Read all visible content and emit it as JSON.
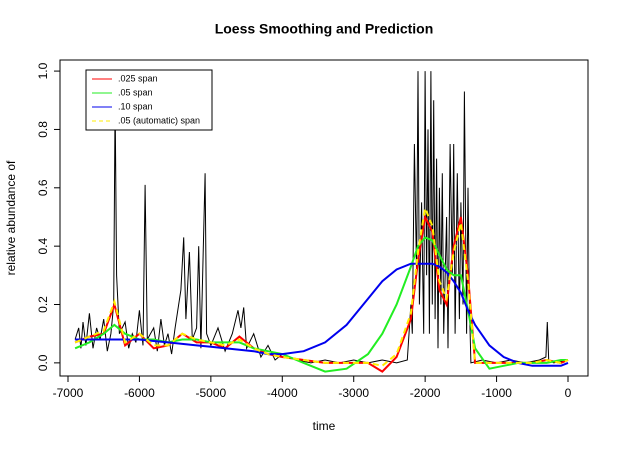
{
  "chart_data": {
    "type": "line",
    "title": "Loess Smoothing and Prediction",
    "x_label": "time",
    "y_label": "relative abundance of",
    "xlim": [
      -7112,
      280
    ],
    "ylim": [
      -0.045,
      1.038
    ],
    "xticks": [
      -7000,
      -6000,
      -5000,
      -4000,
      -3000,
      -2000,
      -1000,
      0
    ],
    "yticks": [
      {
        "value": 0,
        "label": "0.0"
      },
      0.2,
      0.4,
      0.6,
      0.8,
      {
        "value": 1,
        "label": "1.0"
      }
    ],
    "grid": false,
    "legend": "top-left",
    "series": [
      {
        "color": "#000000",
        "width": 1,
        "dashed": false,
        "x": [
          -6900,
          -6850,
          -6820,
          -6790,
          -6750,
          -6700,
          -6650,
          -6600,
          -6550,
          -6500,
          -6450,
          -6400,
          -6360,
          -6340,
          -6320,
          -6280,
          -6200,
          -6150,
          -6100,
          -6050,
          -6000,
          -5950,
          -5920,
          -5890,
          -5800,
          -5750,
          -5700,
          -5650,
          -5600,
          -5550,
          -5500,
          -5420,
          -5380,
          -5350,
          -5300,
          -5260,
          -5200,
          -5170,
          -5140,
          -5080,
          -5060,
          -5000,
          -4900,
          -4800,
          -4700,
          -4620,
          -4580,
          -4540,
          -4500,
          -4400,
          -4300,
          -4200,
          -4100,
          -4000,
          -3800,
          -3600,
          -3400,
          -3200,
          -3000,
          -2800,
          -2600,
          -2400,
          -2250,
          -2200,
          -2180,
          -2150,
          -2120,
          -2100,
          -2080,
          -2050,
          -2020,
          -2000,
          -1980,
          -1960,
          -1940,
          -1920,
          -1900,
          -1880,
          -1860,
          -1840,
          -1820,
          -1800,
          -1780,
          -1760,
          -1740,
          -1700,
          -1680,
          -1650,
          -1620,
          -1600,
          -1580,
          -1550,
          -1520,
          -1500,
          -1470,
          -1450,
          -1420,
          -1400,
          -1380,
          -1360,
          -1200,
          -1000,
          -800,
          -600,
          -400,
          -310,
          -290,
          -270,
          -200,
          0
        ],
        "values": [
          0.08,
          0.12,
          0.05,
          0.14,
          0.06,
          0.17,
          0.05,
          0.12,
          0.08,
          0.15,
          0.04,
          0.1,
          0.2,
          0.9,
          0.3,
          0.1,
          0.14,
          0.05,
          0.1,
          0.07,
          0.18,
          0.06,
          0.61,
          0.08,
          0.12,
          0.04,
          0.15,
          0.06,
          0.1,
          0.03,
          0.12,
          0.25,
          0.43,
          0.15,
          0.38,
          0.08,
          0.12,
          0.4,
          0.05,
          0.65,
          0.1,
          0.06,
          0.12,
          0.04,
          0.1,
          0.18,
          0.12,
          0.19,
          0.05,
          0.1,
          0.02,
          0.06,
          0.01,
          0.03,
          0.01,
          0,
          0.01,
          0,
          0.01,
          0,
          0.01,
          0,
          0.01,
          0.2,
          0.1,
          0.75,
          0.3,
          1,
          0.2,
          0.55,
          0.1,
          1,
          0.3,
          0.8,
          0.1,
          1,
          0.2,
          0.9,
          0.15,
          0.7,
          0.05,
          0.6,
          0.2,
          0.65,
          0.1,
          0.5,
          0.05,
          0.75,
          0.3,
          0.75,
          0.1,
          0.65,
          0.15,
          0.55,
          0.2,
          0.93,
          0.1,
          0.6,
          0.2,
          0,
          0.01,
          0,
          0.01,
          0,
          0.01,
          0.02,
          0.14,
          0.01,
          0,
          0.01
        ]
      },
      {
        "name": ".025 span",
        "color": "#ff0000",
        "width": 2,
        "dashed": false,
        "x": [
          -6900,
          -6700,
          -6500,
          -6350,
          -6200,
          -6000,
          -5800,
          -5600,
          -5400,
          -5200,
          -5000,
          -4800,
          -4600,
          -4400,
          -4200,
          -4000,
          -3700,
          -3400,
          -3100,
          -2800,
          -2600,
          -2400,
          -2200,
          -2100,
          -2000,
          -1900,
          -1800,
          -1700,
          -1600,
          -1500,
          -1400,
          -1300,
          -1100,
          -900,
          -700,
          -500,
          -300,
          -100,
          0
        ],
        "values": [
          0.07,
          0.09,
          0.1,
          0.2,
          0.06,
          0.1,
          0.05,
          0.06,
          0.1,
          0.07,
          0.07,
          0.05,
          0.09,
          0.05,
          0.03,
          0.02,
          0.01,
          0,
          0,
          0,
          -0.03,
          0.02,
          0.15,
          0.35,
          0.5,
          0.45,
          0.25,
          0.2,
          0.4,
          0.5,
          0.3,
          0,
          0,
          0,
          0,
          0,
          0.01,
          0,
          0.01
        ]
      },
      {
        "name": ".05 span",
        "color": "#22ee22",
        "width": 2,
        "dashed": false,
        "x": [
          -6900,
          -6700,
          -6500,
          -6350,
          -6200,
          -6000,
          -5800,
          -5600,
          -5400,
          -5200,
          -5000,
          -4800,
          -4600,
          -4400,
          -4200,
          -4000,
          -3700,
          -3400,
          -3100,
          -2800,
          -2600,
          -2400,
          -2200,
          -2100,
          -2000,
          -1900,
          -1800,
          -1700,
          -1600,
          -1500,
          -1400,
          -1300,
          -1100,
          -900,
          -700,
          -500,
          -300,
          -100,
          0
        ],
        "values": [
          0.05,
          0.07,
          0.1,
          0.13,
          0.1,
          0.08,
          0.08,
          0.07,
          0.08,
          0.08,
          0.07,
          0.07,
          0.07,
          0.05,
          0.04,
          0.03,
          0,
          -0.03,
          -0.02,
          0.03,
          0.1,
          0.2,
          0.33,
          0.4,
          0.43,
          0.42,
          0.37,
          0.32,
          0.3,
          0.3,
          0.18,
          0.05,
          -0.02,
          -0.01,
          0,
          0,
          0,
          0.01,
          0.01
        ]
      },
      {
        "name": ".10 span",
        "color": "#0000ee",
        "width": 2,
        "dashed": false,
        "x": [
          -6900,
          -6700,
          -6500,
          -6350,
          -6200,
          -6000,
          -5800,
          -5600,
          -5400,
          -5200,
          -5000,
          -4800,
          -4600,
          -4400,
          -4200,
          -4000,
          -3700,
          -3400,
          -3100,
          -2800,
          -2600,
          -2400,
          -2200,
          -2100,
          -2000,
          -1900,
          -1800,
          -1700,
          -1600,
          -1500,
          -1400,
          -1300,
          -1100,
          -900,
          -700,
          -500,
          -300,
          -100,
          0
        ],
        "values": [
          0.08,
          0.08,
          0.08,
          0.08,
          0.08,
          0.08,
          0.075,
          0.07,
          0.065,
          0.06,
          0.055,
          0.05,
          0.045,
          0.04,
          0.03,
          0.03,
          0.04,
          0.07,
          0.13,
          0.22,
          0.28,
          0.32,
          0.34,
          0.34,
          0.34,
          0.34,
          0.33,
          0.31,
          0.28,
          0.24,
          0.18,
          0.13,
          0.06,
          0.02,
          0,
          -0.01,
          -0.01,
          -0.01,
          0
        ]
      },
      {
        "name": ".05 (automatic) span",
        "color": "#ffee00",
        "width": 2,
        "dashed": true,
        "x": [
          -6900,
          -6700,
          -6500,
          -6350,
          -6200,
          -6000,
          -5800,
          -5600,
          -5400,
          -5200,
          -5000,
          -4800,
          -4600,
          -4400,
          -4200,
          -4000,
          -3700,
          -3400,
          -3100,
          -2800,
          -2600,
          -2400,
          -2200,
          -2100,
          -2000,
          -1900,
          -1800,
          -1700,
          -1600,
          -1500,
          -1400,
          -1300,
          -1100,
          -900,
          -700,
          -500,
          -300,
          -100,
          0
        ],
        "values": [
          0.07,
          0.09,
          0.11,
          0.21,
          0.07,
          0.1,
          0.06,
          0.06,
          0.1,
          0.08,
          0.07,
          0.06,
          0.08,
          0.05,
          0.03,
          0.02,
          0.01,
          0,
          0,
          0,
          -0.01,
          0.03,
          0.17,
          0.38,
          0.53,
          0.47,
          0.28,
          0.22,
          0.38,
          0.48,
          0.28,
          0,
          0,
          0,
          0,
          0,
          0.01,
          0,
          0.01
        ]
      }
    ]
  }
}
